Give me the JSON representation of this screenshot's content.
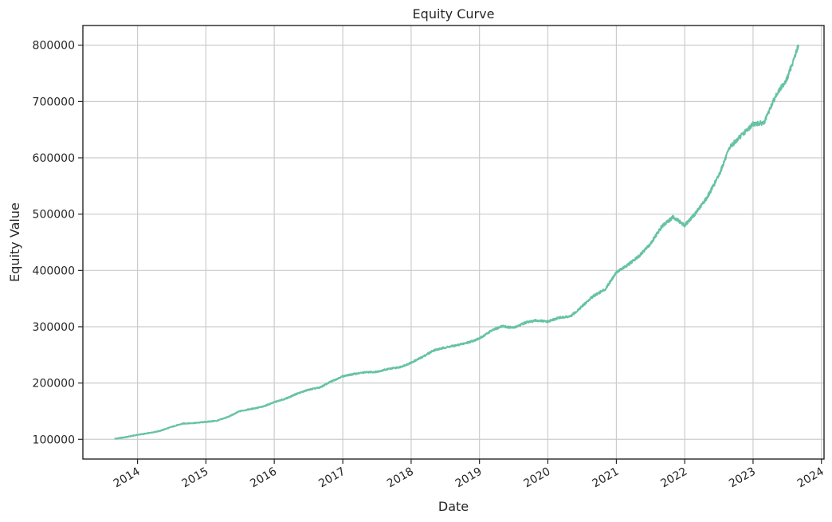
{
  "chart_data": {
    "type": "line",
    "title": "Equity Curve",
    "xlabel": "Date",
    "ylabel": "Equity Value",
    "grid": true,
    "legend": "none",
    "line_color": "#66c2a5",
    "x_ticks": [
      "2014",
      "2015",
      "2016",
      "2017",
      "2018",
      "2019",
      "2020",
      "2021",
      "2022",
      "2023",
      "2024"
    ],
    "y_ticks": [
      100000,
      200000,
      300000,
      400000,
      500000,
      600000,
      700000,
      800000
    ],
    "xlim": [
      "2013-03-15",
      "2024-01-15"
    ],
    "ylim": [
      65000,
      835000
    ],
    "series": [
      {
        "x": [
          "2013-09-01",
          "2013-11-01",
          "2014-01-01",
          "2014-03-01",
          "2014-05-01",
          "2014-07-01",
          "2014-09-01",
          "2014-11-01",
          "2015-01-01",
          "2015-03-01",
          "2015-05-01",
          "2015-07-01",
          "2015-09-01",
          "2015-11-01",
          "2016-01-01",
          "2016-03-01",
          "2016-05-01",
          "2016-07-01",
          "2016-09-01",
          "2016-11-01",
          "2017-01-01",
          "2017-03-01",
          "2017-05-01",
          "2017-07-01",
          "2017-09-01",
          "2017-11-01",
          "2018-01-01",
          "2018-03-01",
          "2018-05-01",
          "2018-07-01",
          "2018-09-01",
          "2018-11-01",
          "2019-01-01",
          "2019-03-01",
          "2019-05-01",
          "2019-07-01",
          "2019-09-01",
          "2019-11-01",
          "2020-01-01",
          "2020-03-01",
          "2020-05-01",
          "2020-07-01",
          "2020-09-01",
          "2020-11-01",
          "2021-01-01",
          "2021-03-01",
          "2021-05-01",
          "2021-07-01",
          "2021-09-01",
          "2021-11-01",
          "2022-01-01",
          "2022-03-01",
          "2022-05-01",
          "2022-07-01",
          "2022-09-01",
          "2022-11-01",
          "2023-01-01",
          "2023-03-01",
          "2023-05-01",
          "2023-07-01",
          "2023-09-01"
        ],
        "y": [
          101000,
          104000,
          108000,
          111000,
          115000,
          122000,
          128000,
          129000,
          131000,
          133000,
          140000,
          150000,
          154000,
          158000,
          166000,
          172000,
          181000,
          188000,
          192000,
          203000,
          212000,
          216000,
          219000,
          220000,
          225000,
          228000,
          236000,
          246000,
          258000,
          263000,
          267000,
          272000,
          279000,
          292000,
          301000,
          298000,
          307000,
          311000,
          309000,
          316000,
          318000,
          336000,
          355000,
          366000,
          397000,
          409000,
          425000,
          447000,
          478000,
          495000,
          480000,
          502000,
          530000,
          568000,
          620000,
          640000,
          660000,
          662000,
          710000,
          740000,
          800000
        ]
      }
    ]
  }
}
